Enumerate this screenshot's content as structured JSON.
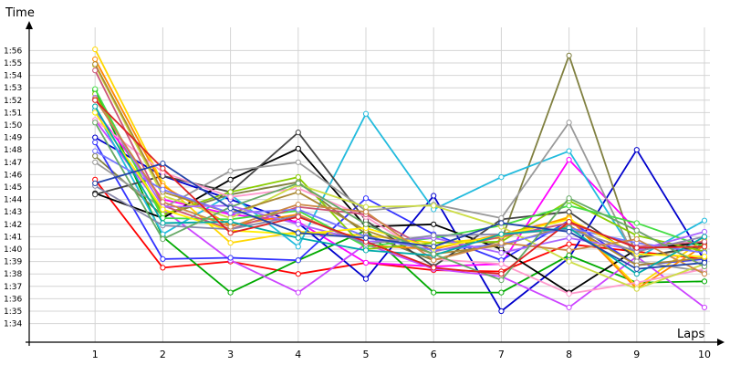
{
  "chart_data": {
    "type": "line",
    "xlabel": "Laps",
    "ylabel": "Time",
    "x": [
      1,
      2,
      3,
      4,
      5,
      6,
      7,
      8,
      9,
      10
    ],
    "xlim": [
      0,
      10
    ],
    "ylim": [
      92.5,
      118.5
    ],
    "y_tick_values": [
      94,
      95,
      96,
      97,
      98,
      99,
      100,
      101,
      102,
      103,
      104,
      105,
      106,
      107,
      108,
      109,
      110,
      111,
      112,
      113,
      114,
      115,
      116
    ],
    "y_tick_labels": [
      "1:34",
      "1:35",
      "1:36",
      "1:37",
      "1:38",
      "1:39",
      "1:40",
      "1:41",
      "1:42",
      "1:43",
      "1:44",
      "1:45",
      "1:46",
      "1:47",
      "1:48",
      "1:49",
      "1:50",
      "1:51",
      "1:52",
      "1:53",
      "1:54",
      "1:55",
      "1:56"
    ],
    "x_tick_labels": [
      "1",
      "2",
      "3",
      "4",
      "5",
      "6",
      "7",
      "8",
      "9",
      "10"
    ],
    "grid": true,
    "legend": false,
    "series": [
      {
        "color": "#ff0000",
        "values": [
          105.6,
          98.5,
          99.0,
          98.0,
          98.9,
          98.3,
          98.2,
          100.4,
          99.8,
          99.2
        ]
      },
      {
        "color": "#0000cc",
        "values": [
          109.0,
          105.9,
          104.0,
          102.1,
          97.6,
          104.3,
          95.0,
          99.3,
          108.0,
          99.1
        ]
      },
      {
        "color": "#00aa00",
        "values": [
          112.8,
          101.0,
          96.5,
          99.1,
          101.5,
          96.5,
          96.5,
          99.5,
          97.3,
          97.4
        ]
      },
      {
        "color": "#ffd700",
        "values": [
          116.1,
          105.3,
          100.5,
          101.4,
          101.1,
          100.5,
          100.9,
          102.6,
          97.0,
          100.8
        ]
      },
      {
        "color": "#808040",
        "values": [
          107.5,
          102.7,
          104.4,
          105.4,
          101.2,
          99.1,
          100.7,
          115.6,
          99.3,
          100.2
        ]
      },
      {
        "color": "#ff00ff",
        "values": [
          111.2,
          104.0,
          102.8,
          102.2,
          98.9,
          98.6,
          98.8,
          107.2,
          101.5,
          98.6
        ]
      },
      {
        "color": "#cc44ff",
        "values": [
          110.4,
          103.2,
          99.1,
          96.5,
          100.4,
          98.4,
          97.8,
          95.3,
          99.4,
          95.3
        ]
      },
      {
        "color": "#22bbdd",
        "values": [
          111.2,
          101.2,
          104.4,
          100.2,
          110.9,
          103.2,
          105.8,
          107.9,
          99.3,
          102.3
        ]
      },
      {
        "color": "#3333ff",
        "values": [
          108.6,
          99.2,
          99.3,
          99.1,
          104.1,
          101.2,
          99.1,
          102.3,
          98.7,
          99.2
        ]
      },
      {
        "color": "#000000",
        "values": [
          104.5,
          102.5,
          105.6,
          108.1,
          101.8,
          102.0,
          100.0,
          96.5,
          100.0,
          100.5
        ]
      },
      {
        "color": "#444444",
        "values": [
          104.4,
          105.9,
          104.6,
          109.4,
          102.3,
          98.6,
          102.4,
          103.0,
          99.3,
          100.3
        ]
      },
      {
        "color": "#999999",
        "values": [
          107.0,
          103.3,
          106.3,
          107.0,
          103.1,
          103.6,
          102.5,
          110.2,
          99.0,
          98.2
        ]
      },
      {
        "color": "#ff8800",
        "values": [
          115.3,
          105.1,
          101.9,
          102.8,
          100.3,
          100.0,
          101.2,
          102.5,
          96.8,
          100.3
        ]
      },
      {
        "color": "#88cc00",
        "values": [
          112.5,
          102.8,
          104.6,
          105.8,
          100.0,
          100.5,
          100.6,
          103.9,
          101.1,
          99.8
        ]
      },
      {
        "color": "#44dd44",
        "values": [
          112.9,
          102.5,
          102.4,
          103.1,
          100.2,
          100.9,
          101.9,
          103.5,
          102.1,
          100.2
        ]
      },
      {
        "color": "#ff99cc",
        "values": [
          110.4,
          106.2,
          104.2,
          104.9,
          102.6,
          99.2,
          98.8,
          96.4,
          97.3,
          98.4
        ]
      },
      {
        "color": "#ccdd44",
        "values": [
          114.8,
          104.3,
          102.5,
          105.2,
          103.4,
          103.5,
          101.8,
          99.0,
          96.8,
          98.8
        ]
      },
      {
        "color": "#aa8833",
        "values": [
          114.9,
          104.6,
          102.9,
          104.6,
          101.5,
          99.6,
          100.3,
          101.9,
          98.7,
          99.3
        ]
      },
      {
        "color": "#cc5577",
        "values": [
          114.4,
          103.5,
          101.6,
          103.4,
          102.8,
          99.8,
          101.0,
          102.1,
          100.2,
          100.6
        ]
      },
      {
        "color": "#7777ff",
        "values": [
          107.9,
          104.8,
          102.9,
          103.2,
          101.0,
          99.9,
          100.4,
          101.7,
          100.5,
          99.7
        ]
      },
      {
        "color": "#aa66ff",
        "values": [
          112.2,
          103.4,
          103.5,
          102.0,
          100.6,
          100.9,
          99.7,
          100.9,
          99.9,
          101.4
        ]
      },
      {
        "color": "#ffee00",
        "values": [
          111.0,
          103.2,
          101.5,
          101.2,
          101.7,
          100.1,
          101.1,
          102.4,
          99.6,
          99.4
        ]
      },
      {
        "color": "#8888aa",
        "values": [
          105.1,
          101.9,
          101.6,
          102.7,
          100.4,
          101.1,
          101.2,
          101.6,
          99.8,
          101.0
        ]
      },
      {
        "color": "#cc8844",
        "values": [
          112.1,
          103.8,
          101.8,
          103.6,
          103.0,
          99.1,
          100.5,
          99.9,
          100.8,
          98.0
        ]
      },
      {
        "color": "#00aaaa",
        "values": [
          111.5,
          102.1,
          102.2,
          100.9,
          99.9,
          99.5,
          101.2,
          101.7,
          98.0,
          101.0
        ]
      },
      {
        "color": "#66aa66",
        "values": [
          110.2,
          100.8,
          103.4,
          105.3,
          102.0,
          99.6,
          97.5,
          104.1,
          101.5,
          98.6
        ]
      },
      {
        "color": "#dd2222",
        "values": [
          112.0,
          106.5,
          101.3,
          102.6,
          100.6,
          98.5,
          98.0,
          102.2,
          100.1,
          100.2
        ]
      },
      {
        "color": "#2244aa",
        "values": [
          105.3,
          106.9,
          103.3,
          101.3,
          100.9,
          100.2,
          102.1,
          101.4,
          98.4,
          98.9
        ]
      }
    ]
  }
}
